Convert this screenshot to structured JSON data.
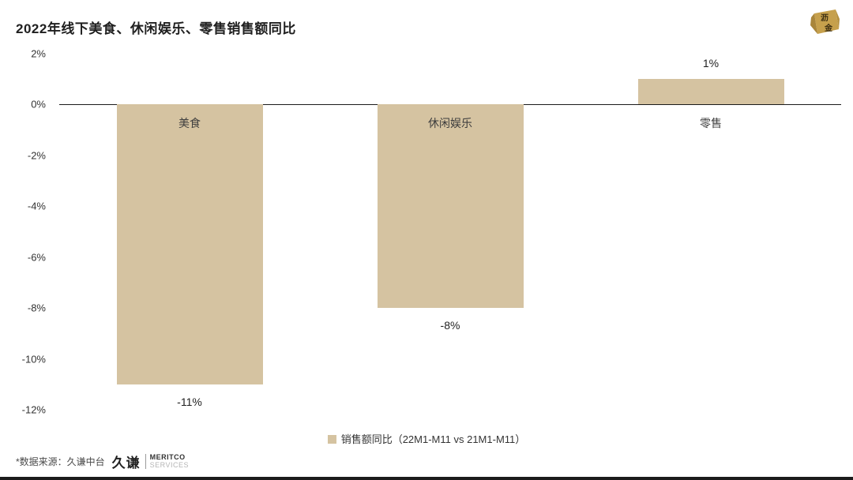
{
  "header": {
    "title": "2022年线下美食、休闲娱乐、零售销售额同比",
    "logo_char_1": "沥",
    "logo_char_2": "金"
  },
  "chart_data": {
    "type": "bar",
    "title": "2022年线下美食、休闲娱乐、零售销售额同比",
    "categories": [
      "美食",
      "休闲娱乐",
      "零售"
    ],
    "slugs": [
      "food",
      "leisure-entertainment",
      "retail"
    ],
    "values": [
      -11,
      -8,
      1
    ],
    "value_labels": [
      "-11%",
      "-8%",
      "1%"
    ],
    "ylim": [
      -12,
      2
    ],
    "ytick_values": [
      2,
      0,
      -2,
      -4,
      -6,
      -8,
      -10,
      -12
    ],
    "ytick_labels": [
      "2%",
      "0%",
      "-2%",
      "-4%",
      "-6%",
      "-8%",
      "-10%",
      "-12%"
    ],
    "bar_color": "#d5c3a1",
    "grid": false,
    "legend_position": "bottom",
    "legend": [
      "销售额同比（22M1-M11 vs 21M1-M11）"
    ]
  },
  "legend": {
    "label": "销售额同比（22M1-M11 vs 21M1-M11）"
  },
  "footer": {
    "source": "*数据来源：久谦中台",
    "brand_name": "久谦",
    "brand_sub_top": "MERITCO",
    "brand_sub_bottom": "SERVICES"
  },
  "colors": {
    "bar": "#d5c3a1",
    "accent_gold": "#c6a04c",
    "text": "#333333",
    "axis_line": "#1a1a1a"
  }
}
